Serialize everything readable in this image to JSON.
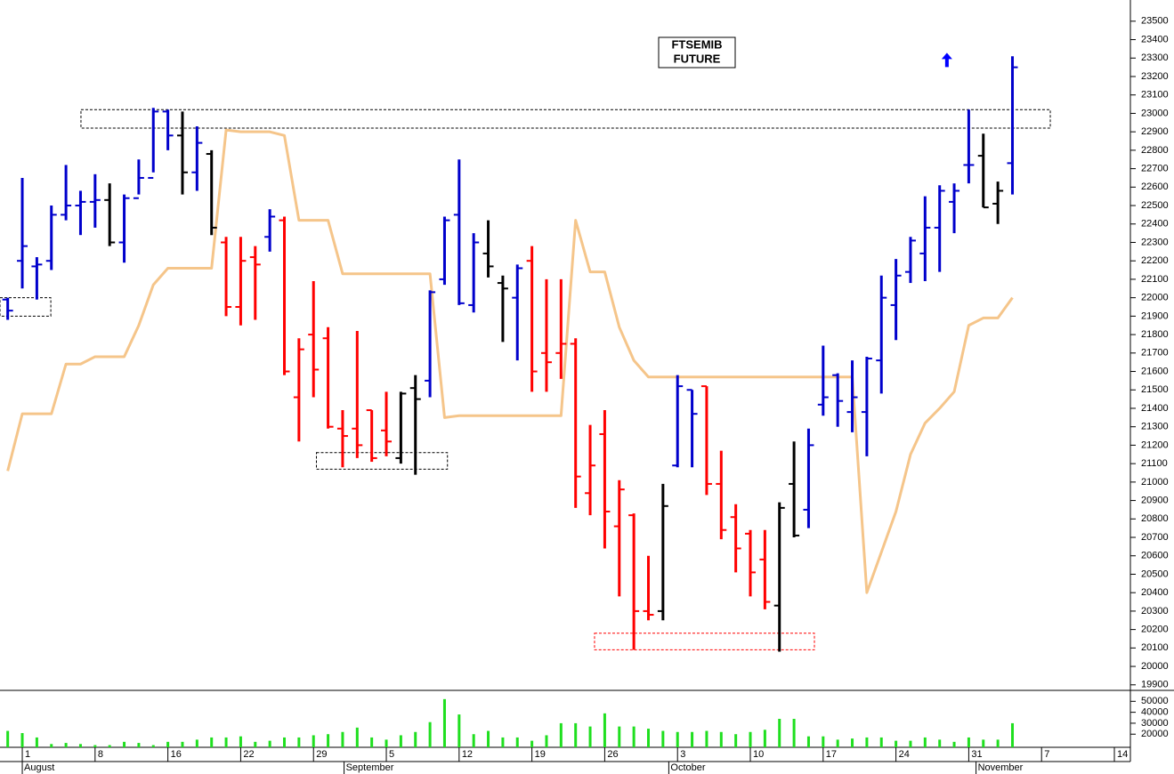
{
  "chart_data": [
    {
      "type": "ohlc",
      "title": [
        "FTSEMIB",
        "FUTURE"
      ],
      "open": [
        21990,
        22200,
        22170,
        22200,
        22450,
        22500,
        22520,
        22530,
        22300,
        22540,
        22650,
        23010,
        22880,
        22680,
        22780,
        22300,
        21950,
        22220,
        22330,
        22420,
        21460,
        21800,
        21780,
        21290,
        21290,
        21390,
        21280,
        21130,
        21510,
        21550,
        22100,
        22450,
        21960,
        22240,
        22080,
        22000,
        22200,
        21700,
        21700,
        21750,
        20940,
        21260,
        20760,
        20820,
        20300,
        20300,
        21090,
        21500,
        21520,
        20990,
        20810,
        20720,
        20580,
        20330,
        20990,
        20850,
        21420,
        21580,
        21380,
        21380,
        21660,
        21960,
        22140,
        22240,
        22380,
        22520,
        22720,
        22770,
        22510,
        22730
      ],
      "high": [
        22000,
        22650,
        22220,
        22500,
        22720,
        22580,
        22670,
        22620,
        22560,
        22750,
        23030,
        23020,
        23010,
        22930,
        22800,
        22330,
        22330,
        22280,
        22480,
        22440,
        21780,
        22090,
        21840,
        21390,
        21820,
        21390,
        21490,
        21490,
        21580,
        22040,
        22440,
        22750,
        22350,
        22420,
        22120,
        22180,
        22280,
        22100,
        22100,
        21780,
        21310,
        21390,
        21010,
        20830,
        20600,
        20990,
        21580,
        21500,
        21520,
        21170,
        20880,
        20740,
        20740,
        20890,
        21220,
        21290,
        21740,
        21590,
        21660,
        21680,
        22120,
        22210,
        22330,
        22550,
        22610,
        22620,
        23020,
        22890,
        22630,
        23310
      ],
      "low": [
        21880,
        22050,
        21990,
        22150,
        22420,
        22340,
        22380,
        22280,
        22190,
        22560,
        22680,
        22800,
        22560,
        22580,
        22340,
        21900,
        21850,
        21880,
        22250,
        21580,
        21220,
        21460,
        21290,
        21080,
        21130,
        21110,
        21140,
        21100,
        21040,
        21460,
        22070,
        21960,
        21920,
        22110,
        21760,
        21660,
        21490,
        21490,
        21560,
        20860,
        20820,
        20640,
        20380,
        20090,
        20250,
        20250,
        21080,
        21080,
        20930,
        20690,
        20510,
        20380,
        20310,
        20080,
        20700,
        20750,
        21360,
        21300,
        21270,
        21140,
        21480,
        21770,
        22080,
        22090,
        22140,
        22350,
        22620,
        22490,
        22400,
        22560
      ],
      "close": [
        21930,
        22280,
        22180,
        22450,
        22500,
        22520,
        22530,
        22300,
        22540,
        22650,
        23010,
        22880,
        22680,
        22840,
        22380,
        21950,
        22200,
        22180,
        22440,
        21600,
        21720,
        21610,
        21300,
        21250,
        21200,
        21130,
        21220,
        21480,
        21450,
        22030,
        22420,
        21970,
        22300,
        22170,
        22050,
        22160,
        21600,
        21650,
        21750,
        21030,
        21090,
        20840,
        20960,
        20300,
        20280,
        20870,
        21520,
        21370,
        20990,
        20740,
        20640,
        20510,
        20350,
        20860,
        20710,
        21200,
        21460,
        21440,
        21460,
        21670,
        22000,
        22120,
        22310,
        22380,
        22580,
        22580,
        22720,
        22490,
        22580,
        23250
      ],
      "bar_colors": [
        "#0000cc",
        "#0000cc",
        "#0000cc",
        "#0000cc",
        "#0000cc",
        "#0000cc",
        "#0000cc",
        "#000000",
        "#0000cc",
        "#0000cc",
        "#0000cc",
        "#0000cc",
        "#000000",
        "#0000cc",
        "#000000",
        "#ff0000",
        "#ff0000",
        "#ff0000",
        "#0000cc",
        "#ff0000",
        "#ff0000",
        "#ff0000",
        "#ff0000",
        "#ff0000",
        "#ff0000",
        "#ff0000",
        "#ff0000",
        "#000000",
        "#000000",
        "#0000cc",
        "#0000cc",
        "#0000cc",
        "#0000cc",
        "#000000",
        "#000000",
        "#0000cc",
        "#ff0000",
        "#ff0000",
        "#ff0000",
        "#ff0000",
        "#ff0000",
        "#ff0000",
        "#ff0000",
        "#ff0000",
        "#ff0000",
        "#000000",
        "#0000cc",
        "#0000cc",
        "#ff0000",
        "#ff0000",
        "#ff0000",
        "#ff0000",
        "#ff0000",
        "#000000",
        "#000000",
        "#0000cc",
        "#0000cc",
        "#0000cc",
        "#0000cc",
        "#0000cc",
        "#0000cc",
        "#0000cc",
        "#0000cc",
        "#0000cc",
        "#0000cc",
        "#0000cc",
        "#0000cc",
        "#000000",
        "#000000",
        "#0000cc"
      ],
      "line": {
        "color": "#f5c58a",
        "values": [
          21060,
          21370,
          21370,
          21370,
          21640,
          21640,
          21680,
          21680,
          21680,
          21850,
          22070,
          22160,
          22160,
          22160,
          22160,
          22910,
          22900,
          22900,
          22900,
          22880,
          22420,
          22420,
          22420,
          22130,
          22130,
          22130,
          22130,
          22130,
          22130,
          22130,
          21350,
          21360,
          21360,
          21360,
          21360,
          21360,
          21360,
          21360,
          21360,
          22420,
          22140,
          22140,
          21840,
          21660,
          21570,
          21570,
          21570,
          21570,
          21570,
          21570,
          21570,
          21570,
          21570,
          21570,
          21570,
          21570,
          21570,
          21570,
          21570,
          20400,
          20620,
          20840,
          21150,
          21320,
          21400,
          21490,
          21850,
          21890,
          21890,
          22000
        ]
      },
      "zones": [
        {
          "x": [
            5.03,
            71.6
          ],
          "y": [
            22920,
            23020
          ],
          "color": "#000000"
        },
        {
          "x": [
            -0.53,
            2.96
          ],
          "y": [
            21900,
            22000
          ],
          "color": "#000000"
        },
        {
          "x": [
            21.2,
            30.2
          ],
          "y": [
            21070,
            21160
          ],
          "color": "#000000"
        },
        {
          "x": [
            40.3,
            55.4
          ],
          "y": [
            20090,
            20180
          ],
          "color": "#ff0000"
        }
      ],
      "marker": {
        "x": 64.5,
        "y": 23290,
        "color": "#0000ff"
      },
      "xlim": [
        -0.53,
        77.1
      ],
      "xticks": [
        {
          "value": 1,
          "label": "1"
        },
        {
          "value": 6,
          "label": "8"
        },
        {
          "value": 11,
          "label": "16"
        },
        {
          "value": 16,
          "label": "22"
        },
        {
          "value": 21,
          "label": "29"
        },
        {
          "value": 26,
          "label": "5"
        },
        {
          "value": 31,
          "label": "12"
        },
        {
          "value": 36,
          "label": "19"
        },
        {
          "value": 41,
          "label": "26"
        },
        {
          "value": 46,
          "label": "3"
        },
        {
          "value": 51,
          "label": "10"
        },
        {
          "value": 56,
          "label": "17"
        },
        {
          "value": 61,
          "label": "24"
        },
        {
          "value": 66,
          "label": "31"
        },
        {
          "value": 71,
          "label": "7"
        },
        {
          "value": 76,
          "label": "14"
        }
      ],
      "month_ticks": [
        {
          "value": 1,
          "label": "August"
        },
        {
          "value": 23.1,
          "label": "September"
        },
        {
          "value": 45.4,
          "label": "October"
        },
        {
          "value": 66.5,
          "label": "November"
        }
      ],
      "ylim": [
        19870,
        23615
      ],
      "yticks": [
        19900,
        20000,
        20100,
        20200,
        20300,
        20400,
        20500,
        20600,
        20700,
        20800,
        20900,
        21000,
        21100,
        21200,
        21300,
        21400,
        21500,
        21600,
        21700,
        21800,
        21900,
        22000,
        22100,
        22200,
        22300,
        22400,
        22500,
        22600,
        22700,
        22800,
        22900,
        23000,
        23100,
        23200,
        23300,
        23400,
        23500
      ]
    },
    {
      "type": "bar",
      "color": "#1fdf1f",
      "values": [
        23000,
        21000,
        17000,
        11000,
        12000,
        11000,
        10000,
        10000,
        13000,
        12000,
        10000,
        13000,
        13000,
        15000,
        17000,
        17000,
        18000,
        13000,
        14000,
        17000,
        17000,
        19000,
        20000,
        22000,
        26000,
        17000,
        15000,
        19000,
        22000,
        31000,
        52000,
        38000,
        20000,
        23000,
        17000,
        17000,
        14000,
        19000,
        30000,
        30000,
        27000,
        39000,
        27000,
        27000,
        25000,
        23000,
        22000,
        22000,
        23000,
        22000,
        20000,
        22000,
        24000,
        34000,
        34000,
        18000,
        18000,
        15000,
        16000,
        17000,
        17000,
        14000,
        14000,
        17000,
        15000,
        13000,
        17000,
        15000,
        15000,
        30000
      ],
      "ylim": [
        8000,
        60000
      ],
      "yticks": [
        20000,
        30000,
        40000,
        50000
      ]
    }
  ]
}
